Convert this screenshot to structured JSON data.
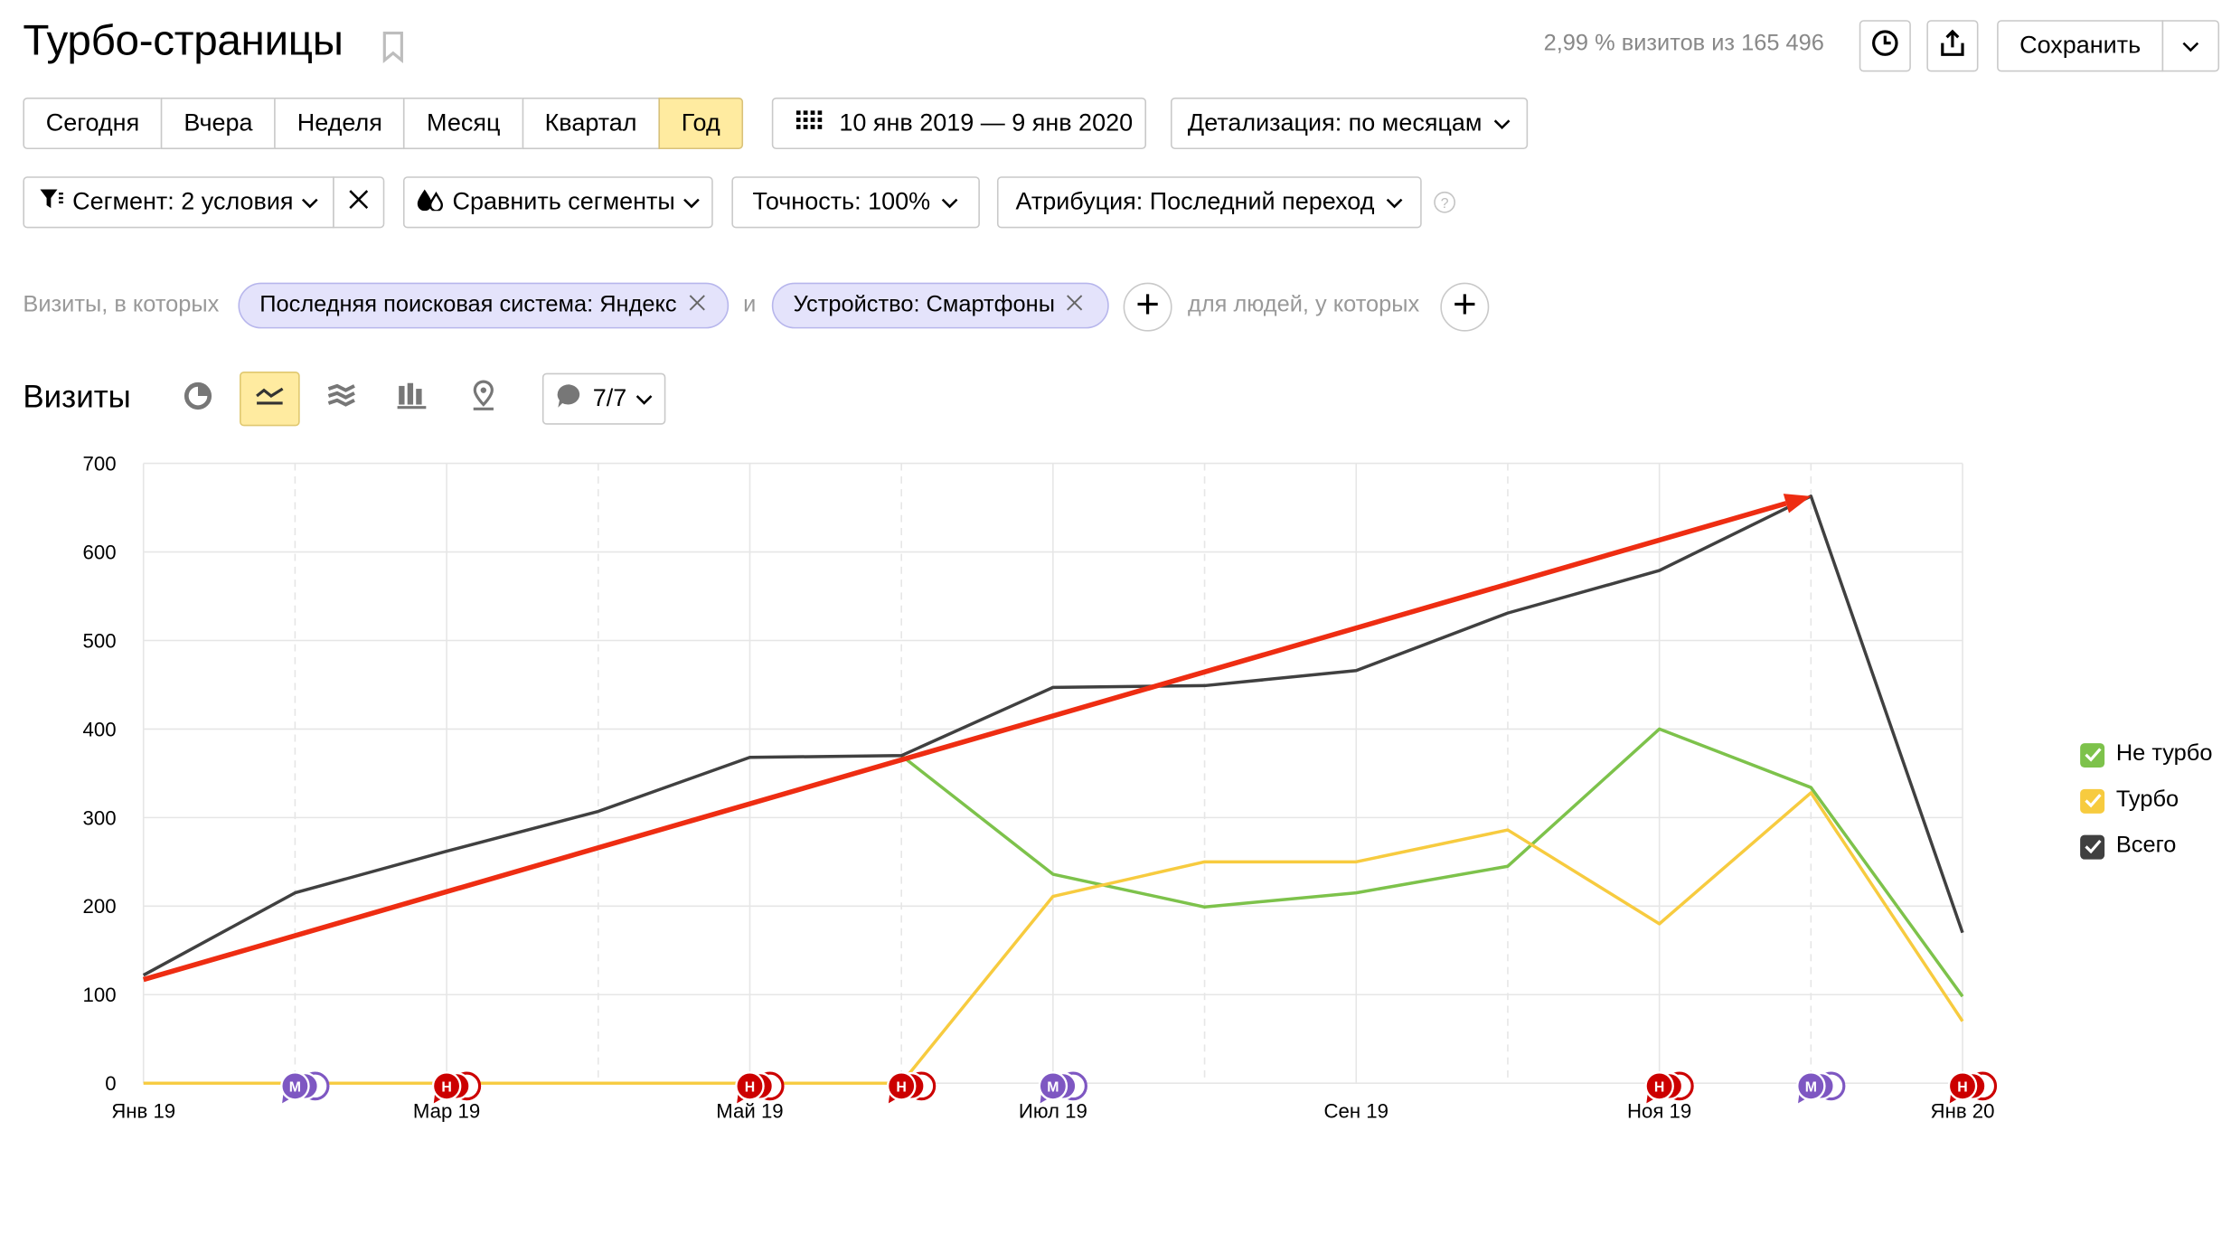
{
  "header": {
    "title": "Турбо-страницы",
    "stat": "2,99 % визитов из 165 496",
    "save_label": "Сохранить"
  },
  "period_tabs": [
    {
      "label": "Сегодня",
      "active": false
    },
    {
      "label": "Вчера",
      "active": false
    },
    {
      "label": "Неделя",
      "active": false
    },
    {
      "label": "Месяц",
      "active": false
    },
    {
      "label": "Квартал",
      "active": false
    },
    {
      "label": "Год",
      "active": true
    }
  ],
  "date_range": "10 янв 2019 — 9 янв 2020",
  "detail": "Детализация: по месяцам",
  "filters": {
    "segment": "Сегмент: 2 условия",
    "compare": "Сравнить сегменты",
    "accuracy": "Точность: 100%",
    "attribution": "Атрибуция: Последний переход"
  },
  "conditions": {
    "prefix": "Визиты, в которых",
    "chip1": "Последняя поисковая система: Яндекс",
    "joiner": "и",
    "chip2": "Устройство: Смартфоны",
    "people": "для людей, у которых"
  },
  "report": {
    "title": "Визиты",
    "annotations_label": "7/7"
  },
  "colors": {
    "accent": "#ffeba0",
    "not_turbo": "#7dc24b",
    "turbo": "#f7cb3f",
    "total": "#404040",
    "trend": "#ee2d12",
    "marker_m": "#7e57c2",
    "marker_n": "#cc0000"
  },
  "chart_data": {
    "type": "line",
    "y_ticks": [
      "700",
      "600",
      "500",
      "400",
      "300",
      "200",
      "100",
      "0"
    ],
    "ylim": [
      0,
      700
    ],
    "x_tick_labels": [
      {
        "label": "Янв 19",
        "x": 0
      },
      {
        "label": "Мар 19",
        "x": 2
      },
      {
        "label": "Май 19",
        "x": 4
      },
      {
        "label": "Июл 19",
        "x": 6
      },
      {
        "label": "Сен 19",
        "x": 8
      },
      {
        "label": "Ноя 19",
        "x": 10
      },
      {
        "label": "Янв 20",
        "x": 12
      }
    ],
    "x": [
      0,
      1,
      2,
      3,
      4,
      5,
      6,
      7,
      8,
      9,
      10,
      11,
      12
    ],
    "series": [
      {
        "name": "Не турбо",
        "key": "not_turbo",
        "values": [
          null,
          null,
          null,
          null,
          null,
          370,
          236,
          199,
          215,
          245,
          400,
          334,
          98
        ]
      },
      {
        "name": "Турбо",
        "key": "turbo",
        "values": [
          0,
          0,
          0,
          0,
          0,
          0,
          211,
          250,
          250,
          286,
          180,
          328,
          70
        ]
      },
      {
        "name": "Всего",
        "key": "total",
        "values": [
          122,
          215,
          262,
          307,
          368,
          370,
          447,
          449,
          466,
          531,
          579,
          663,
          170
        ]
      }
    ],
    "trend": {
      "from": [
        0,
        117
      ],
      "to": [
        11,
        663
      ]
    },
    "markers": [
      {
        "x": 1,
        "letter": "М",
        "kind": "m"
      },
      {
        "x": 2,
        "letter": "Н",
        "kind": "n"
      },
      {
        "x": 4,
        "letter": "Н",
        "kind": "n"
      },
      {
        "x": 5,
        "letter": "Н",
        "kind": "n"
      },
      {
        "x": 6,
        "letter": "М",
        "kind": "m"
      },
      {
        "x": 10,
        "letter": "Н",
        "kind": "n"
      },
      {
        "x": 11,
        "letter": "М",
        "kind": "m"
      },
      {
        "x": 12,
        "letter": "Н",
        "kind": "n"
      }
    ],
    "grid": true,
    "legend_position": "right"
  }
}
